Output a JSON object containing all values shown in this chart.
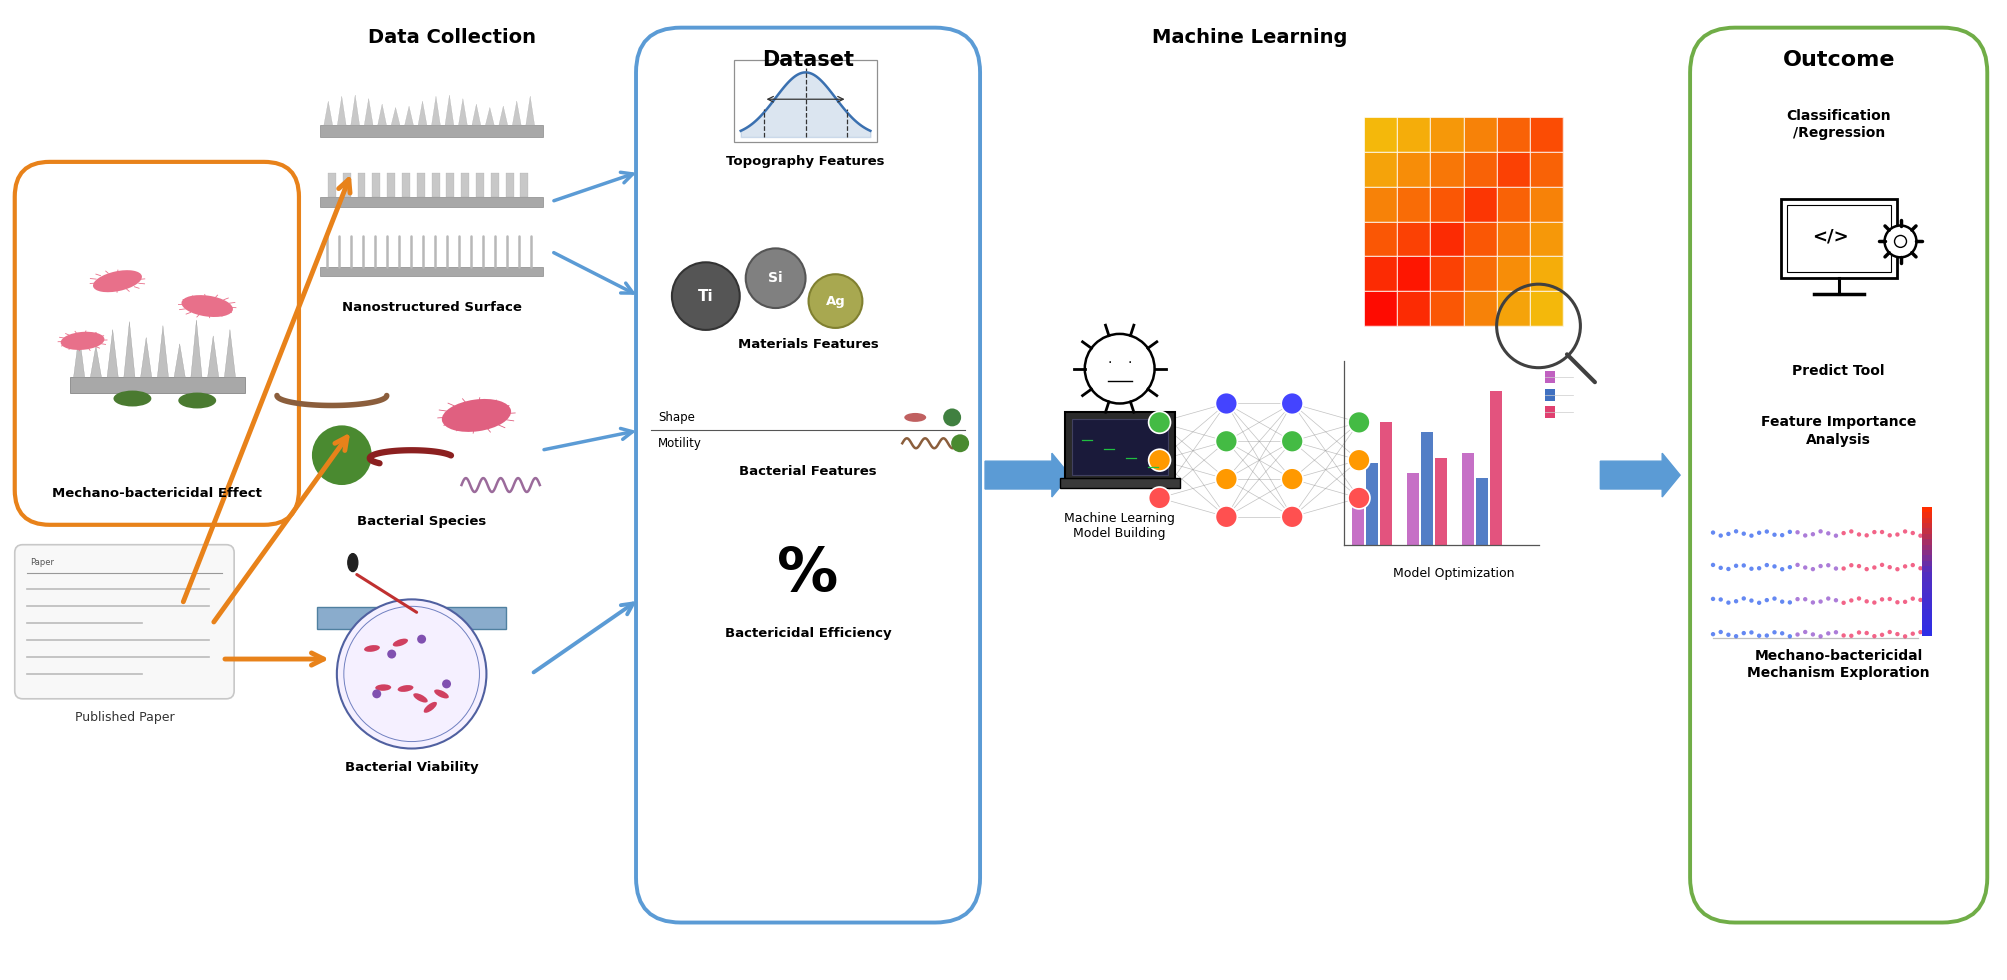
{
  "bg_color": "#ffffff",
  "section_titles": {
    "data_collection": "Data Collection",
    "dataset": "Dataset",
    "machine_learning": "Machine Learning",
    "outcome": "Outcome"
  },
  "data_collection_items": [
    "Mechano-bactericidal Effect",
    "Published Paper",
    "Nanostructured Surface",
    "Bacterial Species",
    "Bacterial Viability"
  ],
  "dataset_items": [
    "Topography Features",
    "Materials Features",
    "Bacterial Features",
    "Bactericidal Efficiency"
  ],
  "ml_label": "Machine Learning\nModel Building",
  "model_opt_label": "Model Optimization",
  "outcome_items": [
    "Classification\n/Regression",
    "Predict Tool",
    "Feature Importance\nAnalysis",
    "Mechano-bactericidal\nMechanism Exploration"
  ],
  "orange_box_color": "#E8821A",
  "blue_box_color": "#5B9BD5",
  "green_box_color": "#70AD47",
  "arrow_orange": "#E8821A",
  "arrow_blue": "#5B9BD5",
  "bacteria_pink": "#E8708A",
  "bacteria_green": "#4A7A30",
  "bacteria_brown": "#8B5E3C",
  "bacteria_red": "#8B2020",
  "bacteria_purple": "#9B6B9B"
}
